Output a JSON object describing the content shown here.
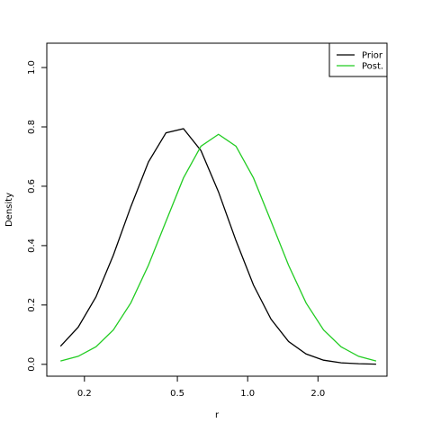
{
  "chart_data": {
    "type": "line",
    "xlabel": "r",
    "ylabel": "Density",
    "xscale": "log",
    "x": [
      0.158,
      0.188,
      0.224,
      0.266,
      0.316,
      0.376,
      0.447,
      0.531,
      0.631,
      0.75,
      0.891,
      1.059,
      1.259,
      1.496,
      1.778,
      2.113,
      2.512,
      2.985,
      3.548
    ],
    "series": [
      {
        "name": "Prior",
        "color": "#000000",
        "values": [
          0.061,
          0.125,
          0.227,
          0.368,
          0.531,
          0.682,
          0.78,
          0.794,
          0.72,
          0.581,
          0.417,
          0.267,
          0.152,
          0.077,
          0.035,
          0.014,
          0.005,
          0.002,
          0.0005
        ]
      },
      {
        "name": "Post.",
        "color": "#22cc22",
        "values": [
          0.011,
          0.027,
          0.059,
          0.116,
          0.207,
          0.334,
          0.482,
          0.628,
          0.735,
          0.775,
          0.735,
          0.628,
          0.482,
          0.334,
          0.207,
          0.116,
          0.059,
          0.027,
          0.011
        ]
      }
    ],
    "xlim": [
      0.138,
      3.95
    ],
    "xticks": [
      0.2,
      0.5,
      {
        "value": 1,
        "label": "1.0"
      },
      {
        "value": 2,
        "label": "2.0"
      }
    ],
    "ylim": [
      -0.04,
      1.082
    ],
    "yticks": [
      {
        "value": 0,
        "label": "0.0"
      },
      0.2,
      0.4,
      0.6,
      0.8,
      {
        "value": 1,
        "label": "1.0"
      }
    ],
    "legend": "top-right"
  }
}
